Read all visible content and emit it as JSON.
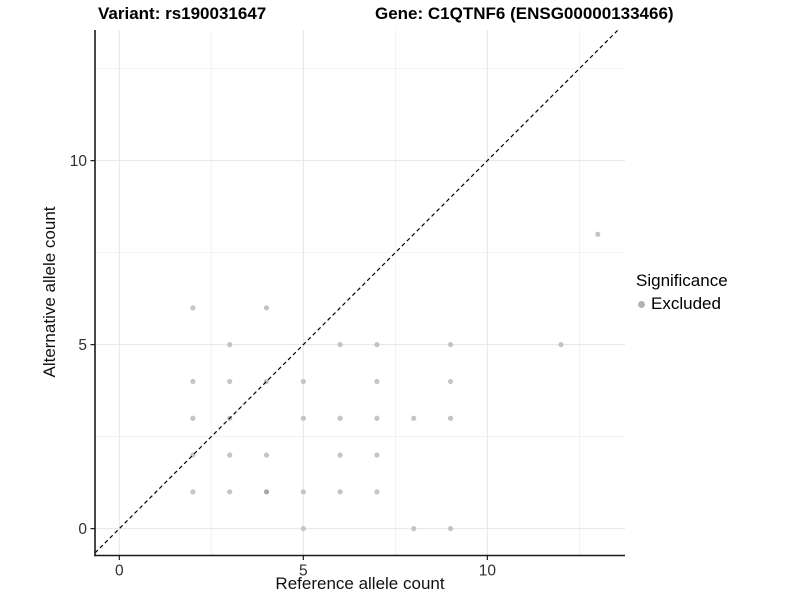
{
  "titles": {
    "variant": "Variant: rs190031647",
    "gene": "Gene: C1QTNF6 (ENSG00000133466)"
  },
  "chart_data": {
    "type": "scatter",
    "xlabel": "Reference allele count",
    "ylabel": "Alternative allele count",
    "x_ticks": [
      0,
      5,
      10
    ],
    "y_ticks": [
      0,
      5,
      10
    ],
    "x_minor": [
      2.5,
      7.5,
      12.5
    ],
    "y_minor": [
      2.5,
      7.5,
      12.5
    ],
    "xlim": [
      -0.66,
      13.74
    ],
    "ylim": [
      -0.73,
      13.55
    ],
    "grid": true,
    "identity_line": {
      "style": "dashed",
      "equation": "y = x",
      "color": "#000000"
    },
    "points": [
      [
        13,
        8
      ],
      [
        2,
        6
      ],
      [
        4,
        6
      ],
      [
        3,
        5
      ],
      [
        6,
        5
      ],
      [
        7,
        5
      ],
      [
        9,
        5
      ],
      [
        12,
        5
      ],
      [
        2,
        4
      ],
      [
        3,
        4
      ],
      [
        4,
        4
      ],
      [
        5,
        4
      ],
      [
        7,
        4
      ],
      [
        9,
        4
      ],
      [
        2,
        3
      ],
      [
        3,
        3
      ],
      [
        5,
        3
      ],
      [
        6,
        3
      ],
      [
        7,
        3
      ],
      [
        8,
        3
      ],
      [
        9,
        3
      ],
      [
        2,
        2
      ],
      [
        3,
        2
      ],
      [
        4,
        2
      ],
      [
        6,
        2
      ],
      [
        7,
        2
      ],
      [
        2,
        1
      ],
      [
        3,
        1
      ],
      [
        4,
        1
      ],
      [
        5,
        1
      ],
      [
        6,
        1
      ],
      [
        7,
        1
      ],
      [
        5,
        0
      ],
      [
        8,
        0
      ],
      [
        9,
        0
      ]
    ],
    "overplotted_points": [
      [
        4,
        1
      ]
    ],
    "colors": {
      "point": "#c4c4c4",
      "point_dark": "#a9a9a9",
      "grid_major": "#e6e6e6",
      "grid_minor": "#f0f0f0",
      "axis_line": "#1a1a1a",
      "tick_label": "#303030"
    },
    "legend": {
      "title": "Significance",
      "position": "right",
      "items": [
        {
          "label": "Excluded",
          "color": "#b3b3b3"
        }
      ]
    }
  }
}
